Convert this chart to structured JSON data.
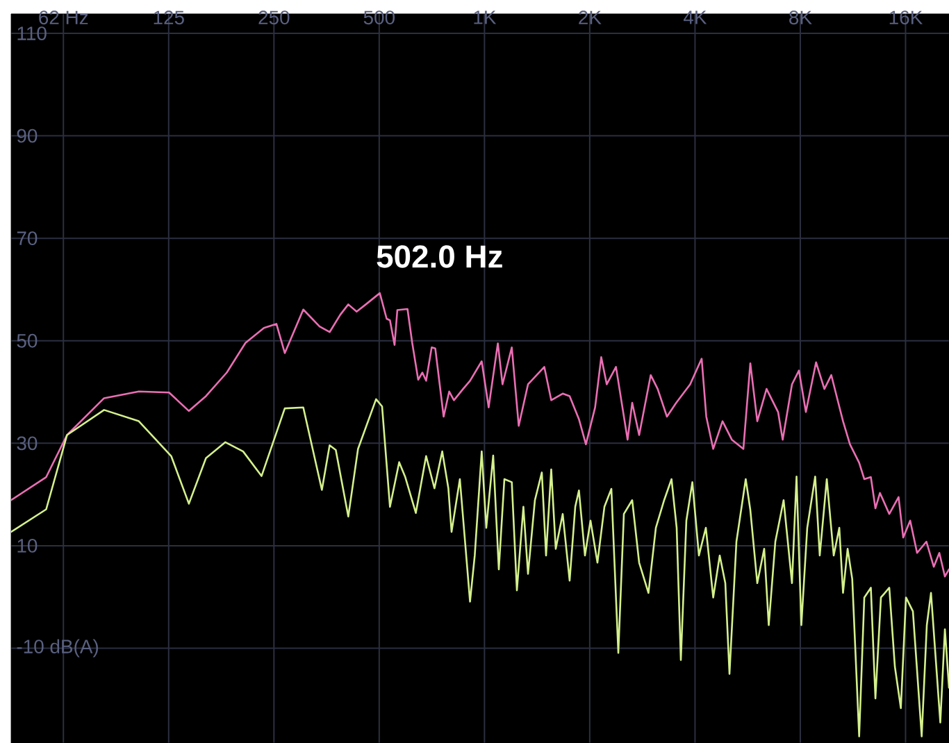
{
  "chart_data": {
    "type": "line",
    "log": "x",
    "grid": true,
    "xlim": [
      44.3,
      21300
    ],
    "ylim": [
      -28.5,
      113.8
    ],
    "xticks": [
      {
        "value": 62.5,
        "label": "62 Hz"
      },
      125,
      250,
      500,
      {
        "value": 1000,
        "label": "1K"
      },
      {
        "value": 2000,
        "label": "2K"
      },
      {
        "value": 4000,
        "label": "4K"
      },
      {
        "value": 8000,
        "label": "8K"
      },
      {
        "value": 16000,
        "label": "16K"
      }
    ],
    "yticks": [
      {
        "value": -10,
        "label": "-10 dB(A)"
      },
      10,
      30,
      50,
      70,
      90,
      110
    ],
    "annotations": [
      {
        "text": "502.0 Hz",
        "x": 502,
        "y": 59.3
      }
    ],
    "series": [
      {
        "color": "#ea6fb4",
        "x": [
          44.3,
          55.8,
          64.0,
          81.7,
          102.7,
          125.3,
          142.8,
          159.8,
          183.3,
          207.3,
          234.1,
          254.1,
          268.5,
          303.3,
          337.6,
          360.8,
          387.1,
          407.9,
          430.9,
          457.8,
          502,
          525.1,
          536.7,
          553.2,
          563.4,
          602.4,
          621.4,
          646.4,
          664.4,
          681.0,
          706.4,
          723.4,
          764.3,
          792.8,
          817.8,
          868.6,
          909.3,
          981.9,
          1028,
          1092,
          1126,
          1197,
          1253,
          1332,
          1483,
          1552,
          1674,
          1752,
          1863,
          1950,
          2072,
          2157,
          2237,
          2377,
          2566,
          2645,
          2769,
          2988,
          3128,
          3325,
          3535,
          3874,
          4179,
          4308,
          4509,
          4794,
          5098,
          5500,
          5757,
          6027,
          6407,
          6912,
          7125,
          7575,
          7931,
          8300,
          8875,
          9375,
          9813,
          10275,
          10600,
          11094,
          11788,
          12194,
          12731,
          13119,
          13519,
          14375,
          15281,
          15756,
          16494,
          17263,
          18356,
          19269,
          19988,
          20731,
          21300
        ],
        "values": [
          18.9,
          23.4,
          31.6,
          38.8,
          40.1,
          39.9,
          36.3,
          39.2,
          43.8,
          49.6,
          52.5,
          53.3,
          47.6,
          56.1,
          52.8,
          51.7,
          55.1,
          57.1,
          55.7,
          57.1,
          59.3,
          54.3,
          54.0,
          49.2,
          56.0,
          56.2,
          49.6,
          42.4,
          43.8,
          42.2,
          48.7,
          48.5,
          35.2,
          40.1,
          38.4,
          40.6,
          42.2,
          46.0,
          37.0,
          49.5,
          41.5,
          48.7,
          33.4,
          41.5,
          44.9,
          38.4,
          39.7,
          39.2,
          34.7,
          29.8,
          37.0,
          46.8,
          41.5,
          44.9,
          30.7,
          37.9,
          31.6,
          43.3,
          40.6,
          35.2,
          37.9,
          41.5,
          46.5,
          35.2,
          28.9,
          34.3,
          30.7,
          28.9,
          45.6,
          34.3,
          40.6,
          36.1,
          30.7,
          41.5,
          44.2,
          36.1,
          45.8,
          40.6,
          43.3,
          37.9,
          34.3,
          29.8,
          26.2,
          23.0,
          23.4,
          17.3,
          20.3,
          16.2,
          19.5,
          11.6,
          14.9,
          8.6,
          10.8,
          5.9,
          8.6,
          4.0,
          5.4
        ]
      },
      {
        "color": "#d4f08c",
        "x": [
          44.3,
          55.8,
          64.0,
          81.7,
          102.7,
          127.1,
          142.8,
          159.8,
          181.6,
          204.1,
          230.4,
          268.5,
          303.3,
          342.8,
          360.8,
          375.7,
          407.9,
          434.9,
          489.8,
          509.5,
          536.7,
          570.2,
          593.6,
          636.4,
          681.0,
          719.4,
          757.3,
          788.4,
          805.1,
          850.4,
          909.3,
          938.0,
          981.9,
          1012,
          1059,
          1099,
          1140,
          1197,
          1238,
          1292,
          1332,
          1394,
          1459,
          1500,
          1552,
          1599,
          1674,
          1752,
          1818,
          1863,
          1938,
          2010,
          2104,
          2203,
          2306,
          2414,
          2504,
          2645,
          2769,
          2944,
          3091,
          3265,
          3427,
          3545,
          3644,
          3779,
          3931,
          4104,
          4296,
          4509,
          4707,
          4883,
          5019,
          5254,
          5586,
          5757,
          6027,
          6309,
          6500,
          6788,
          7169,
          7575,
          7806,
          8056,
          8375,
          8825,
          9094,
          9525,
          9969,
          10344,
          10600,
          10925,
          11263,
          11788,
          12194,
          12731,
          13119,
          13606,
          14375,
          14913,
          15513,
          16044,
          16794,
          17794,
          18406,
          18919,
          20113,
          20731,
          21300
        ],
        "values": [
          12.7,
          17.1,
          31.6,
          36.5,
          34.3,
          27.5,
          18.2,
          27.1,
          30.2,
          28.4,
          23.6,
          36.8,
          37.0,
          20.9,
          29.6,
          28.7,
          15.7,
          28.9,
          38.6,
          37.2,
          17.6,
          26.3,
          23.4,
          16.4,
          27.5,
          21.2,
          28.4,
          21.2,
          12.7,
          23.0,
          -0.9,
          8.1,
          28.4,
          13.5,
          27.6,
          5.4,
          23.0,
          22.4,
          1.3,
          17.6,
          4.5,
          18.9,
          24.3,
          8.1,
          24.9,
          9.4,
          16.2,
          3.2,
          17.6,
          20.8,
          8.1,
          14.9,
          6.7,
          17.6,
          21.1,
          -10.9,
          16.2,
          18.9,
          6.7,
          0.8,
          13.5,
          18.9,
          23.0,
          13.5,
          -12.3,
          14.9,
          22.4,
          8.1,
          13.5,
          -0.1,
          8.1,
          2.7,
          -15.0,
          10.8,
          23.0,
          17.0,
          2.7,
          9.4,
          -5.5,
          10.8,
          18.9,
          2.7,
          23.5,
          -5.5,
          13.5,
          23.5,
          8.1,
          23.0,
          8.1,
          13.5,
          0.8,
          9.4,
          3.5,
          -27.2,
          -0.1,
          1.8,
          -19.8,
          -0.1,
          1.8,
          -13.6,
          -21.7,
          -0.1,
          -2.8,
          -27.2,
          -5.5,
          0.8,
          -24.5,
          -6.3,
          -17.7
        ]
      }
    ]
  }
}
